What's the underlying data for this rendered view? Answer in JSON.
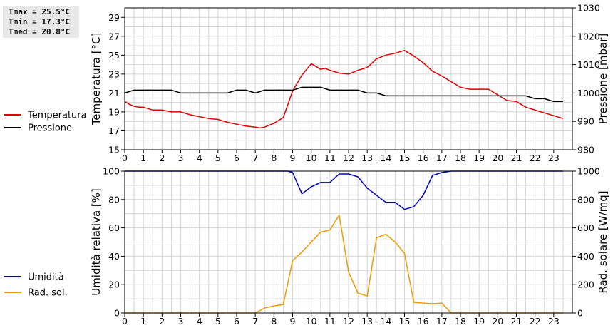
{
  "stats": {
    "tmax": "Tmax = 25.5°C",
    "tmin": "Tmin = 17.3°C",
    "tmed": "Tmed = 20.8°C"
  },
  "chart_data": [
    {
      "type": "line",
      "grid": true,
      "legend_placement": "left",
      "x_ticks": [
        "0",
        "1",
        "2",
        "3",
        "4",
        "5",
        "6",
        "7",
        "8",
        "9",
        "10",
        "11",
        "12",
        "13",
        "14",
        "15",
        "16",
        "17",
        "18",
        "19",
        "20",
        "21",
        "22",
        "23"
      ],
      "xlim": [
        0,
        24
      ],
      "ylabel_left": "Temperatura [°C]",
      "ylim_left": [
        15,
        30
      ],
      "y_ticks_left": [
        15,
        17,
        19,
        21,
        23,
        25,
        27,
        29
      ],
      "ylabel_right": "Pressione [mbar]",
      "ylim_right": [
        980,
        1030
      ],
      "y_ticks_right": [
        980,
        990,
        1000,
        1010,
        1020,
        1030
      ],
      "series": [
        {
          "name": "Temperatura",
          "axis": "left",
          "color": "#dd0000",
          "x": [
            0,
            0.25,
            0.5,
            0.75,
            1,
            1.5,
            2,
            2.5,
            3,
            3.5,
            4,
            4.5,
            5,
            5.5,
            6,
            6.5,
            7,
            7.25,
            7.5,
            8,
            8.5,
            9,
            9.5,
            10,
            10.5,
            10.75,
            11,
            11.5,
            12,
            12.5,
            13,
            13.5,
            14,
            14.5,
            15,
            15.5,
            16,
            16.5,
            17,
            17.5,
            18,
            18.5,
            19,
            19.5,
            20,
            20.5,
            21,
            21.5,
            22,
            22.5,
            23,
            23.5
          ],
          "values": [
            20.1,
            19.8,
            19.6,
            19.5,
            19.5,
            19.2,
            19.2,
            19.0,
            19.0,
            18.7,
            18.5,
            18.3,
            18.2,
            17.9,
            17.7,
            17.5,
            17.4,
            17.3,
            17.4,
            17.8,
            18.4,
            21.2,
            22.9,
            24.1,
            23.5,
            23.6,
            23.4,
            23.1,
            23.0,
            23.4,
            23.7,
            24.6,
            25.0,
            25.2,
            25.5,
            24.9,
            24.2,
            23.3,
            22.8,
            22.2,
            21.6,
            21.4,
            21.4,
            21.4,
            20.8,
            20.2,
            20.1,
            19.5,
            19.2,
            18.9,
            18.6,
            18.3
          ]
        },
        {
          "name": "Pressione",
          "axis": "right",
          "color": "#000000",
          "x": [
            0,
            0.25,
            0.5,
            1,
            1.5,
            2,
            2.5,
            3,
            3.5,
            4,
            4.5,
            5,
            5.5,
            6,
            6.5,
            7,
            7.5,
            8,
            8.5,
            9,
            9.5,
            10,
            10.5,
            11,
            11.5,
            12,
            12.5,
            13,
            13.5,
            14,
            15,
            16,
            17,
            18,
            19,
            20,
            21,
            21.5,
            22,
            22.5,
            23,
            23.5
          ],
          "values": [
            1000,
            1000.5,
            1001,
            1001,
            1001,
            1001,
            1001,
            1000,
            1000,
            1000,
            1000,
            1000,
            1000,
            1001,
            1001,
            1000,
            1001,
            1001,
            1001,
            1001,
            1002,
            1002,
            1002,
            1001,
            1001,
            1001,
            1001,
            1000,
            1000,
            999,
            999,
            999,
            999,
            999,
            999,
            999,
            999,
            999,
            998,
            998,
            997,
            997
          ]
        }
      ]
    },
    {
      "type": "line",
      "grid": true,
      "legend_placement": "left",
      "x_ticks": [
        "0",
        "1",
        "2",
        "3",
        "4",
        "5",
        "6",
        "7",
        "8",
        "9",
        "10",
        "11",
        "12",
        "13",
        "14",
        "15",
        "16",
        "17",
        "18",
        "19",
        "20",
        "21",
        "22",
        "23"
      ],
      "xlim": [
        0,
        24
      ],
      "ylabel_left": "Umidità relativa [%]",
      "ylim_left": [
        0,
        100
      ],
      "y_ticks_left": [
        0,
        20,
        40,
        60,
        80,
        100
      ],
      "ylabel_right": "Rad. solare [W/mq]",
      "ylim_right": [
        0,
        1000
      ],
      "y_ticks_right": [
        0,
        200,
        400,
        600,
        800,
        1000
      ],
      "series": [
        {
          "name": "Umidità",
          "axis": "left",
          "color": "#0000bb",
          "x": [
            0,
            8.5,
            8.75,
            9,
            9.5,
            10,
            10.5,
            11,
            11.5,
            12,
            12.5,
            13,
            13.5,
            14,
            14.5,
            15,
            15.5,
            16,
            16.5,
            17,
            17.5,
            18,
            19,
            20,
            21,
            22,
            23,
            23.5
          ],
          "values": [
            100,
            100,
            100,
            99,
            84,
            89,
            92,
            92,
            98,
            98,
            96,
            88,
            83,
            78,
            78,
            73,
            75,
            83,
            97,
            99,
            100,
            100,
            100,
            100,
            100,
            100,
            100,
            100
          ]
        },
        {
          "name": "Rad. sol.",
          "axis": "right",
          "color": "#ee9900",
          "x": [
            0,
            1,
            2,
            3,
            4,
            5,
            6,
            7,
            7.5,
            8,
            8.5,
            9,
            9.5,
            10,
            10.5,
            11,
            11.5,
            12,
            12.5,
            13,
            13.5,
            14,
            14.5,
            15,
            15.5,
            16,
            16.5,
            17,
            17.5,
            18,
            19,
            20,
            21,
            22,
            23,
            23.5
          ],
          "values": [
            0,
            0,
            0,
            0,
            0,
            0,
            0,
            0,
            35,
            50,
            60,
            370,
            430,
            500,
            570,
            585,
            690,
            290,
            140,
            120,
            530,
            555,
            500,
            420,
            75,
            70,
            65,
            70,
            0,
            0,
            0,
            0,
            0,
            0,
            0,
            0
          ]
        }
      ]
    }
  ]
}
